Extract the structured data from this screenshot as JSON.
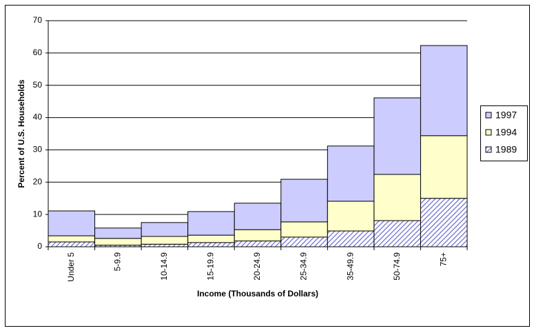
{
  "chart_data": {
    "type": "stacked_bar",
    "y_label": "Percent of U.S. Households",
    "x_label": "Income (Thousands of Dollars)",
    "categories": [
      "Under 5",
      "5-9.9",
      "10-14.9",
      "15-19.9",
      "20-24.9",
      "25-34.9",
      "35-49.9",
      "50-74.9",
      "75+"
    ],
    "series": [
      {
        "name": "1989",
        "color": "#6666cc",
        "pattern": "diagonal",
        "values": [
          1.5,
          0.5,
          0.8,
          1.3,
          1.8,
          3.0,
          4.9,
          8.1,
          15.0
        ]
      },
      {
        "name": "1994",
        "color": "#ffffcc",
        "values": [
          1.9,
          2.1,
          2.4,
          2.3,
          3.5,
          4.7,
          9.2,
          14.3,
          19.4
        ]
      },
      {
        "name": "1997",
        "color": "#ccccff",
        "values": [
          7.7,
          3.2,
          4.3,
          7.3,
          8.2,
          13.2,
          17.1,
          23.7,
          27.9
        ]
      }
    ],
    "ylim": [
      0,
      70
    ],
    "yticks": [
      0,
      10,
      20,
      30,
      40,
      50,
      60,
      70
    ],
    "grid": true,
    "legend": "right"
  }
}
